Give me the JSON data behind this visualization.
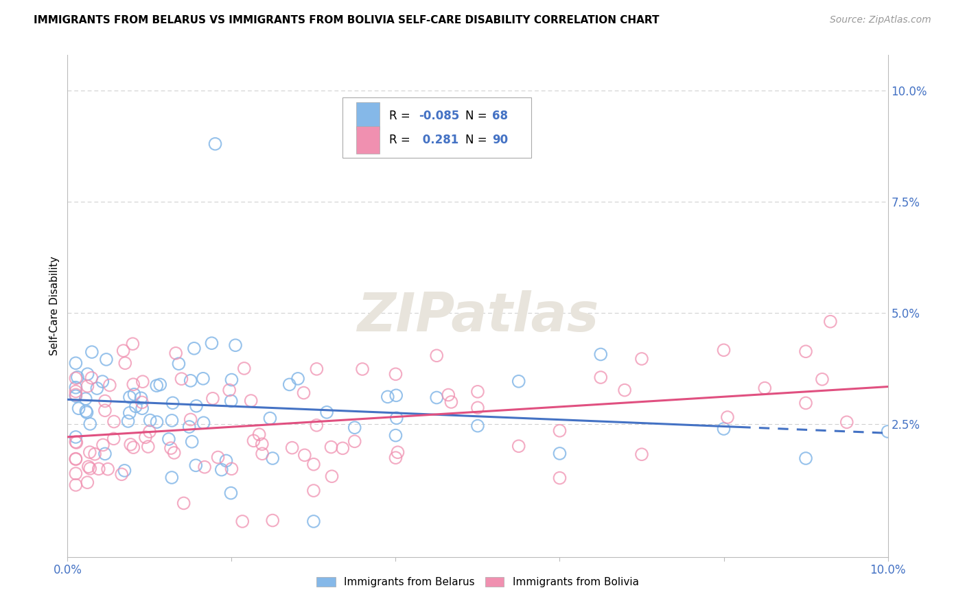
{
  "title": "IMMIGRANTS FROM BELARUS VS IMMIGRANTS FROM BOLIVIA SELF-CARE DISABILITY CORRELATION CHART",
  "source": "Source: ZipAtlas.com",
  "ylabel": "Self-Care Disability",
  "xlim": [
    0.0,
    0.1
  ],
  "ylim": [
    -0.005,
    0.108
  ],
  "yticks_right": [
    0.025,
    0.05,
    0.075,
    0.1
  ],
  "ytick_labels_right": [
    "2.5%",
    "5.0%",
    "7.5%",
    "10.0%"
  ],
  "xtick_positions": [
    0.0,
    0.02,
    0.04,
    0.06,
    0.08,
    0.1
  ],
  "legend_r1": "-0.085",
  "legend_n1": "68",
  "legend_r2": "0.281",
  "legend_n2": "90",
  "color_belarus": "#85B8E8",
  "color_bolivia": "#F090B0",
  "color_text_blue": "#4472C4",
  "color_line_belarus": "#4472C4",
  "color_line_bolivia": "#E05080",
  "color_grid": "#CCCCCC",
  "watermark_color": "#E8E4DC"
}
